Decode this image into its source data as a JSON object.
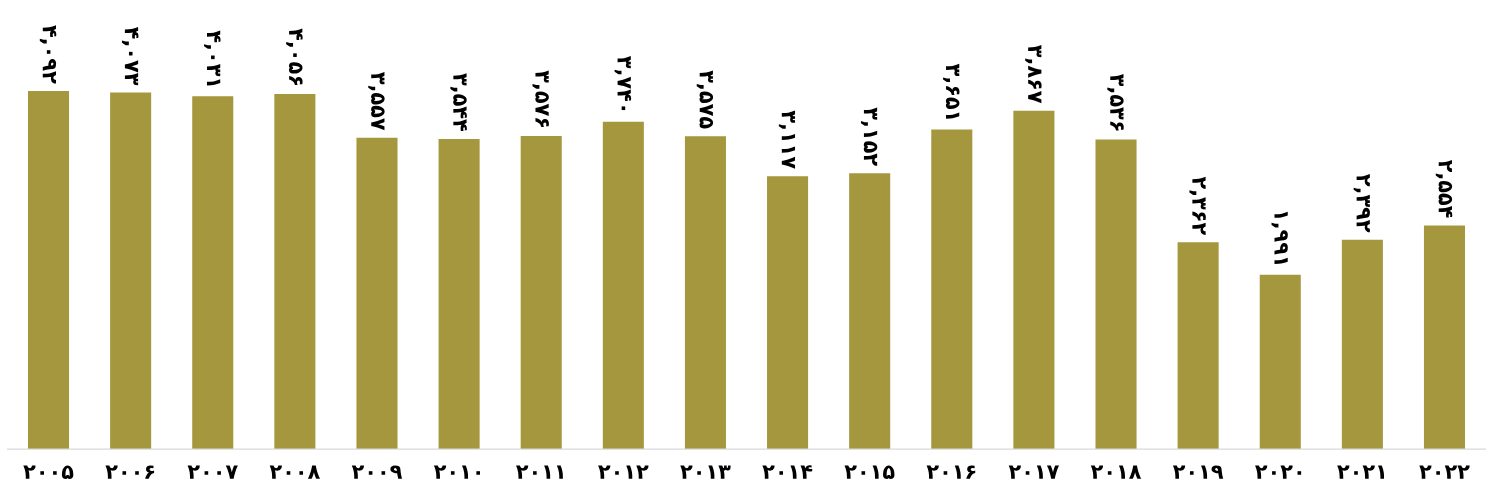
{
  "chart_data": {
    "type": "bar",
    "categories": [
      "۲۰۰۵",
      "۲۰۰۶",
      "۲۰۰۷",
      "۲۰۰۸",
      "۲۰۰۹",
      "۲۰۱۰",
      "۲۰۱۱",
      "۲۰۱۲",
      "۲۰۱۳",
      "۲۰۱۴",
      "۲۰۱۵",
      "۲۰۱۶",
      "۲۰۱۷",
      "۲۰۱۸",
      "۲۰۱۹",
      "۲۰۲۰",
      "۲۰۲۱",
      "۲۰۲۲"
    ],
    "values": [
      4092,
      4073,
      4031,
      4056,
      3557,
      3544,
      3576,
      3740,
      3575,
      3117,
      3152,
      3651,
      3867,
      3536,
      2362,
      1991,
      2392,
      2554
    ],
    "value_labels": [
      "۴,۰۹۲",
      "۴,۰۷۳",
      "۴,۰۳۱",
      "۴,۰۵۶",
      "۳,۵۵۷",
      "۳,۵۴۴",
      "۳,۵۷۶",
      "۳,۷۴۰",
      "۳,۵۷۵",
      "۳,۱۱۷",
      "۳,۱۵۲",
      "۳,۶۵۱",
      "۳,۸۶۷",
      "۳,۵۳۶",
      "۲,۳۶۲",
      "۱,۹۹۱",
      "۲,۳۹۲",
      "۲,۵۵۴"
    ],
    "color": "#a5973d",
    "grid": false,
    "legend": false
  }
}
